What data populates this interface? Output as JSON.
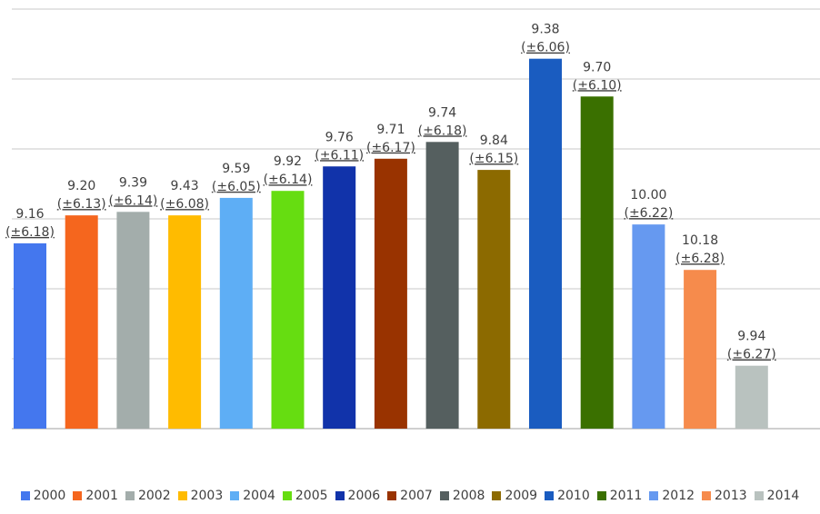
{
  "chart_data": {
    "type": "bar",
    "title": "",
    "xlabel": "",
    "ylabel": "",
    "grid": true,
    "legend_position": "bottom",
    "ylim": [
      0,
      6
    ],
    "y_unit_note": "",
    "categories": [
      "2000",
      "2001",
      "2002",
      "2003",
      "2004",
      "2005",
      "2006",
      "2007",
      "2008",
      "2009",
      "2010",
      "2011",
      "2012",
      "2013",
      "2014"
    ],
    "values": [
      2.65,
      3.05,
      3.1,
      3.05,
      3.3,
      3.4,
      3.75,
      3.86,
      4.1,
      3.7,
      5.29,
      4.75,
      2.92,
      2.27,
      0.9
    ],
    "labels": [
      "9.16",
      "9.20",
      "9.39",
      "9.43",
      "9.59",
      "9.92",
      "9.76",
      "9.71",
      "9.74",
      "9.84",
      "9.38",
      "9.70",
      "10.00",
      "10.18",
      "9.94"
    ],
    "sub_labels": [
      "(±6.18)",
      "(±6.13)",
      "(±6.14)",
      "(±6.08)",
      "(±6.05)",
      "(±6.14)",
      "(±6.11)",
      "(±6.17)",
      "(±6.18)",
      "(±6.15)",
      "(±6.06)",
      "(±6.10)",
      "(±6.22)",
      "(±6.28)",
      "(±6.27)"
    ],
    "colors": [
      "#4477EE",
      "#F5661E",
      "#A3ADAB",
      "#FFBB00",
      "#5EAEF5",
      "#66DD11",
      "#1133AA",
      "#993300",
      "#555F5F",
      "#8C6A00",
      "#1A5CC0",
      "#3A7000",
      "#6699F0",
      "#F68B4C",
      "#B9C2BF"
    ]
  }
}
